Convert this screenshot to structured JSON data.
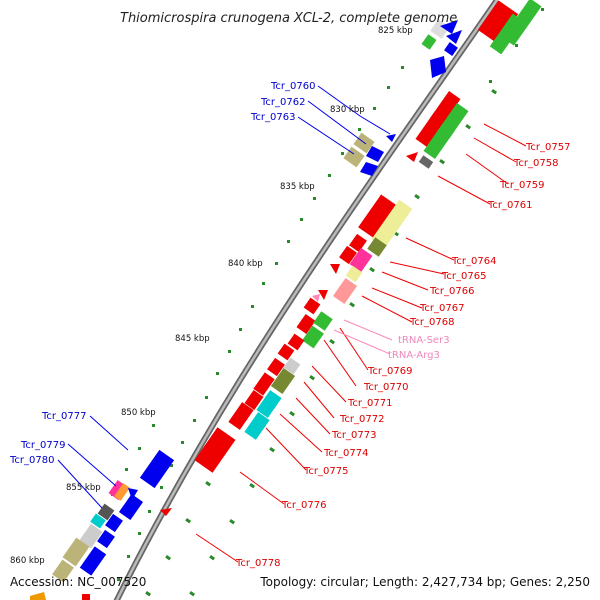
{
  "title": "Thiomicrospira crunogena XCL-2, complete genome",
  "footer": {
    "accession": "Accession: NC_007520",
    "summary": "Topology: circular; Length: 2,427,734 bp; Genes: 2,250"
  },
  "kbp_ticks": [
    "825 kbp",
    "830 kbp",
    "835 kbp",
    "840 kbp",
    "845 kbp",
    "850 kbp",
    "855 kbp",
    "860 kbp"
  ],
  "labels_left": [
    "Tcr_0760",
    "Tcr_0762",
    "Tcr_0763",
    "Tcr_0777",
    "Tcr_0779",
    "Tcr_0780"
  ],
  "labels_right": [
    "Tcr_0757",
    "Tcr_0758",
    "Tcr_0759",
    "Tcr_0761",
    "Tcr_0764",
    "Tcr_0765",
    "Tcr_0766",
    "Tcr_0767",
    "Tcr_0768",
    "tRNA-Ser3",
    "tRNA-Arg3",
    "Tcr_0769",
    "Tcr_0770",
    "Tcr_0771",
    "Tcr_0772",
    "Tcr_0773",
    "Tcr_0774",
    "Tcr_0775",
    "Tcr_0776",
    "Tcr_0778"
  ],
  "colors": {
    "forward_strand": "#0000ee",
    "reverse_strand": "#ee0000",
    "trna": "#ee88bb",
    "cog_green": "#33bb33",
    "cog_khaki": "#bbb377",
    "cog_cyan": "#00cccc",
    "cog_olive": "#778833",
    "cog_pink": "#ff3399",
    "cog_salmon": "#ff9999",
    "cog_pale_yellow": "#eeee99",
    "backbone": "#888888"
  }
}
